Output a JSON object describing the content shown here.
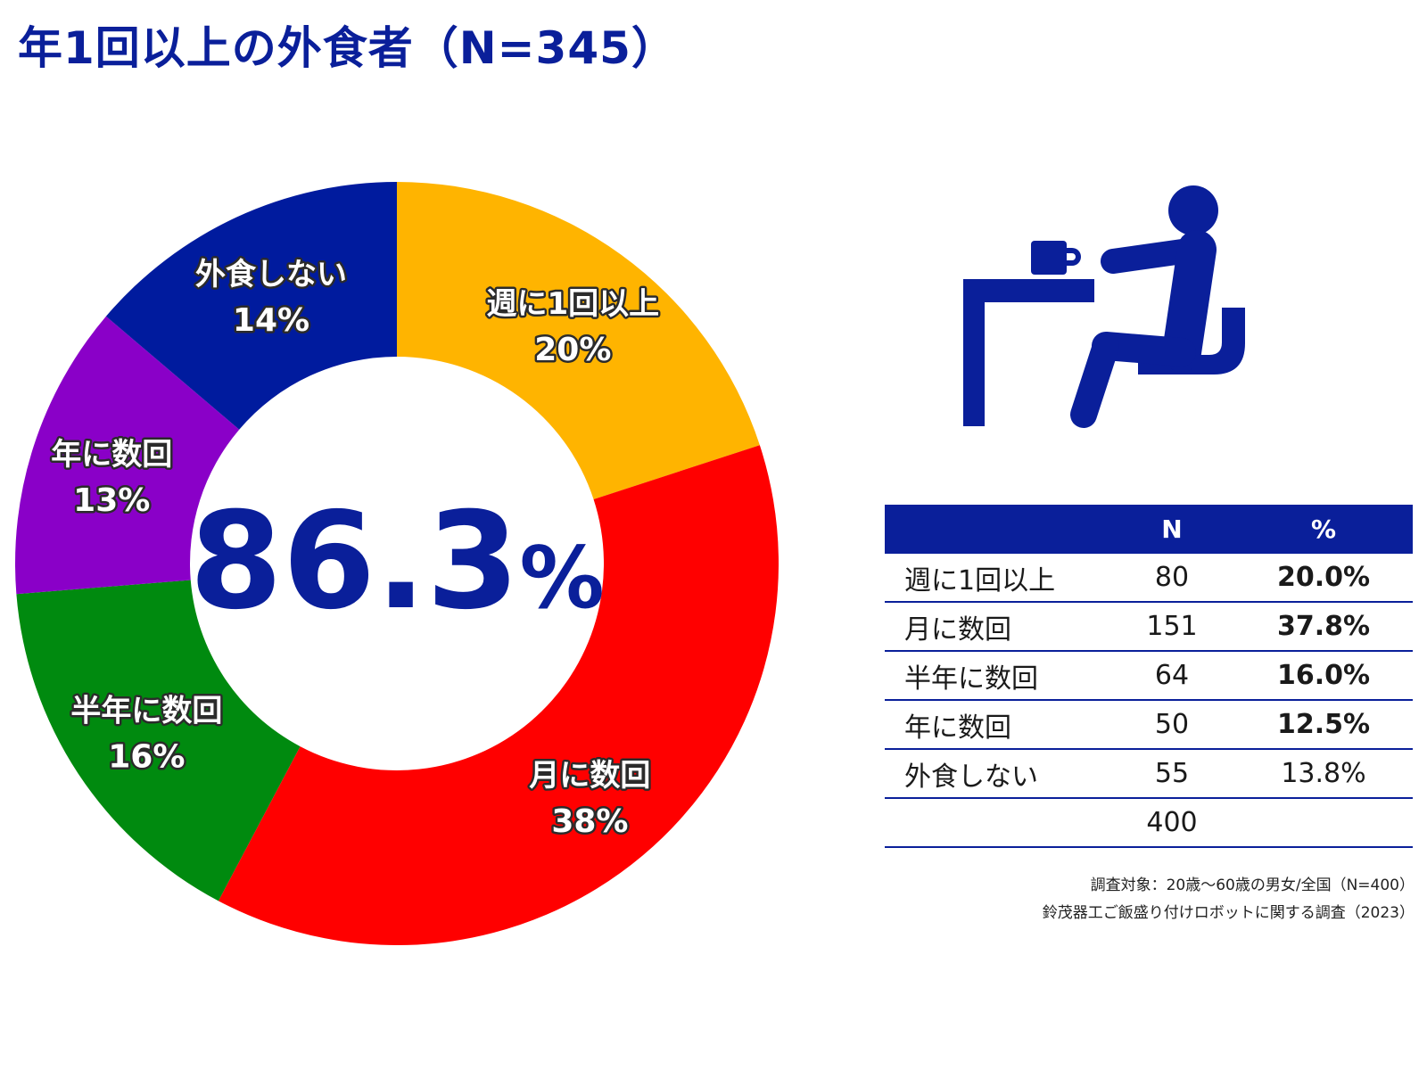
{
  "title": "年1回以上の外食者（N=345）",
  "chart_data": {
    "type": "pie",
    "variant": "donut",
    "center_label": "86.3%",
    "slices": [
      {
        "label": "週に1回以上",
        "percent_label": "20%",
        "value": 20.0,
        "color": "#FFB400"
      },
      {
        "label": "月に数回",
        "percent_label": "38%",
        "value": 37.8,
        "color": "#FF0000"
      },
      {
        "label": "半年に数回",
        "percent_label": "16%",
        "value": 16.0,
        "color": "#008A0F"
      },
      {
        "label": "年に数回",
        "percent_label": "13%",
        "value": 12.5,
        "color": "#8A00C8"
      },
      {
        "label": "外食しない",
        "percent_label": "14%",
        "value": 13.8,
        "color": "#001B9E"
      }
    ]
  },
  "table": {
    "headers": [
      "",
      "N",
      "%"
    ],
    "rows": [
      {
        "label": "週に1回以上",
        "n": "80",
        "pct": "20.0%",
        "bold": true
      },
      {
        "label": "月に数回",
        "n": "151",
        "pct": "37.8%",
        "bold": true
      },
      {
        "label": "半年に数回",
        "n": "64",
        "pct": "16.0%",
        "bold": true
      },
      {
        "label": "年に数回",
        "n": "50",
        "pct": "12.5%",
        "bold": true
      },
      {
        "label": "外食しない",
        "n": "55",
        "pct": "13.8%",
        "bold": false
      },
      {
        "label": "",
        "n": "400",
        "pct": "",
        "bold": false
      }
    ]
  },
  "icon": {
    "name": "person-dining-at-table-icon",
    "color": "#0a1f9a"
  },
  "notes": [
    "調査対象：20歳～60歳の男女/全国（N=400）",
    "鈴茂器工ご飯盛り付けロボットに関する調査（2023）"
  ]
}
